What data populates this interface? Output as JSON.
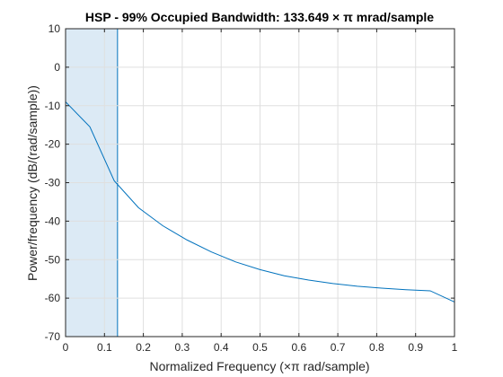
{
  "chart_data": {
    "type": "line",
    "title": "HSP - 99% Occupied Bandwidth: 133.649 × π mrad/sample",
    "xlabel": "Normalized Frequency  (×π rad/sample)",
    "ylabel": "Power/frequency (dB/(rad/sample))",
    "xlim": [
      0,
      1
    ],
    "ylim": [
      -70,
      10
    ],
    "x_ticks": [
      "0",
      "0.1",
      "0.2",
      "0.3",
      "0.4",
      "0.5",
      "0.6",
      "0.7",
      "0.8",
      "0.9",
      "1"
    ],
    "y_ticks": [
      "10",
      "0",
      "-10",
      "-20",
      "-30",
      "-40",
      "-50",
      "-60",
      "-70"
    ],
    "grid": true,
    "occupied_band": {
      "x_start": 0.0,
      "x_end": 0.1336
    },
    "series": [
      {
        "x": [
          0,
          0.0625,
          0.125,
          0.1875,
          0.25,
          0.3125,
          0.375,
          0.4375,
          0.5,
          0.5625,
          0.625,
          0.6875,
          0.75,
          0.8125,
          0.875,
          0.9375,
          1.0
        ],
        "values": [
          -9.0,
          -15.5,
          -29.5,
          -36.5,
          -41.2,
          -44.9,
          -48.0,
          -50.6,
          -52.6,
          -54.2,
          -55.3,
          -56.2,
          -56.9,
          -57.4,
          -57.8,
          -58.1,
          -61.0
        ]
      }
    ],
    "colors": {
      "line": "#0072BD",
      "band_fill": "#DCEAF5",
      "grid": "#DFDFDF",
      "axis": "#262626"
    }
  }
}
